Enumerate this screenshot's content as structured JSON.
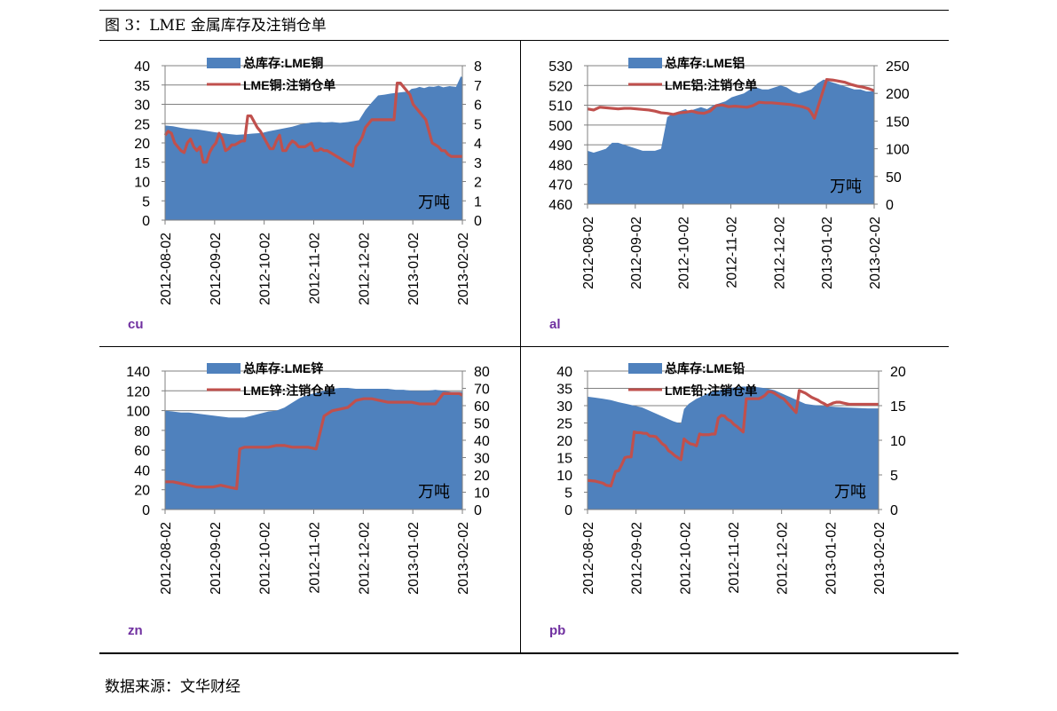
{
  "figure": {
    "title": "图 3：LME 金属库存及注销仓单",
    "source": "数据来源：文华财经"
  },
  "colors": {
    "area": "#4f81bd",
    "line": "#c0504d",
    "label": "#7030a0",
    "grid": "#808080"
  },
  "chart_data": [
    {
      "type": "area+line",
      "metal_label": "cu",
      "unit_label": "万吨",
      "x_tick_labels": [
        "2012-08-02",
        "2012-09-02",
        "2012-10-02",
        "2012-11-02",
        "2012-12-02",
        "2013-01-02",
        "2013-02-02"
      ],
      "left_axis": {
        "ylim": [
          0,
          40
        ],
        "ticks": [
          0,
          5,
          10,
          15,
          20,
          25,
          30,
          35,
          40
        ]
      },
      "right_axis": {
        "ylim": [
          0,
          8
        ],
        "ticks": [
          0,
          1,
          2,
          3,
          4,
          5,
          6,
          7,
          8
        ]
      },
      "series": [
        {
          "name": "总库存:LME铜",
          "kind": "area",
          "axis": "left",
          "x": [
            0,
            5,
            10,
            15,
            20,
            25,
            31,
            36,
            40,
            45,
            50,
            55,
            61,
            65,
            70,
            75,
            80,
            85,
            92,
            97,
            100,
            105,
            110,
            115,
            122,
            126,
            130,
            134,
            138,
            142,
            146,
            150,
            153,
            155,
            158,
            160,
            163,
            166,
            169,
            172,
            175,
            179,
            183,
            186,
            187
          ],
          "values": [
            24.5,
            24.3,
            23.9,
            23.6,
            23.5,
            23.2,
            22.8,
            22.5,
            22.3,
            22.1,
            22.2,
            22.4,
            22.6,
            23.0,
            23.4,
            23.8,
            24.2,
            24.8,
            25.3,
            25.4,
            25.3,
            25.4,
            25.2,
            25.4,
            25.9,
            28.5,
            30.5,
            32.3,
            32.5,
            32.8,
            33.0,
            33.2,
            33.3,
            34.0,
            34.2,
            34.5,
            34.2,
            34.6,
            34.5,
            34.8,
            34.4,
            34.7,
            34.5,
            37.2,
            37.0
          ]
        },
        {
          "name": "LME铜:注销仓单",
          "kind": "line",
          "axis": "right",
          "x": [
            0,
            2,
            4,
            6,
            8,
            10,
            12,
            14,
            16,
            18,
            20,
            22,
            24,
            26,
            28,
            30,
            32,
            34,
            36,
            38,
            40,
            42,
            44,
            46,
            48,
            50,
            52,
            54,
            56,
            58,
            60,
            62,
            64,
            66,
            68,
            70,
            72,
            74,
            76,
            78,
            80,
            82,
            84,
            86,
            88,
            90,
            92,
            94,
            96,
            98,
            100,
            102,
            104,
            106,
            108,
            110,
            112,
            114,
            116,
            118,
            120,
            122,
            124,
            126,
            128,
            130,
            132,
            134,
            136,
            138,
            140,
            142,
            144,
            146,
            148,
            150,
            152,
            154,
            156,
            158,
            160,
            162,
            164,
            166,
            168,
            170,
            172,
            174,
            176,
            178,
            180,
            182,
            184,
            186,
            187
          ],
          "values": [
            4.4,
            4.6,
            4.5,
            4.0,
            3.8,
            3.6,
            3.5,
            4.0,
            4.2,
            3.8,
            3.6,
            3.8,
            3.0,
            3.0,
            3.5,
            3.8,
            4.0,
            4.5,
            4.2,
            3.6,
            3.7,
            3.9,
            3.9,
            4.0,
            4.1,
            4.1,
            5.4,
            5.4,
            5.1,
            4.8,
            4.6,
            4.3,
            4.0,
            3.7,
            3.7,
            4.1,
            4.4,
            3.6,
            3.6,
            3.9,
            4.1,
            4.0,
            3.8,
            3.8,
            3.8,
            3.9,
            4.0,
            3.6,
            3.6,
            3.7,
            3.6,
            3.6,
            3.5,
            3.4,
            3.3,
            3.2,
            3.1,
            3.0,
            2.9,
            2.8,
            3.8,
            4.0,
            4.3,
            4.8,
            5.0,
            5.2,
            5.2,
            5.2,
            5.2,
            5.2,
            5.2,
            5.2,
            5.2,
            7.1,
            7.1,
            6.9,
            6.7,
            6.5,
            6.0,
            5.8,
            5.6,
            5.4,
            5.2,
            4.6,
            4.0,
            3.9,
            3.8,
            3.6,
            3.6,
            3.4,
            3.3,
            3.3,
            3.3,
            3.3,
            3.3
          ]
        }
      ]
    },
    {
      "type": "area+line",
      "metal_label": "al",
      "unit_label": "万吨",
      "x_tick_labels": [
        "2012-08-02",
        "2012-09-02",
        "2012-10-02",
        "2012-11-02",
        "2012-12-02",
        "2013-01-02",
        "2013-02-02"
      ],
      "left_axis": {
        "ylim": [
          460,
          530
        ],
        "ticks": [
          460,
          470,
          480,
          490,
          500,
          510,
          520,
          530
        ]
      },
      "right_axis": {
        "ylim": [
          0,
          250
        ],
        "ticks": [
          0,
          50,
          100,
          150,
          200,
          250
        ]
      },
      "series": [
        {
          "name": "总库存:LME铝",
          "kind": "area",
          "axis": "left",
          "x": [
            0,
            4,
            8,
            12,
            16,
            20,
            24,
            28,
            32,
            36,
            40,
            44,
            48,
            52,
            56,
            60,
            64,
            66,
            70,
            74,
            78,
            82,
            86,
            90,
            94,
            98,
            102,
            106,
            110,
            114,
            118,
            122,
            126,
            130,
            134,
            138,
            142,
            146,
            150,
            154,
            158,
            162,
            166,
            170,
            174,
            178,
            182,
            186,
            187
          ],
          "values": [
            487,
            486,
            487,
            488,
            491,
            491,
            490,
            489,
            488,
            487,
            487,
            487,
            488,
            504,
            506,
            507,
            508,
            507,
            508,
            509,
            508,
            510,
            511,
            512,
            514,
            515,
            516,
            518,
            519,
            518,
            518,
            519,
            520,
            519,
            517,
            516,
            517,
            518,
            521,
            523,
            522,
            521,
            520,
            519,
            518,
            518,
            517,
            517,
            517
          ]
        },
        {
          "name": "LME铝:注销仓单",
          "kind": "line",
          "axis": "right",
          "x": [
            0,
            4,
            8,
            12,
            16,
            20,
            24,
            28,
            32,
            36,
            40,
            44,
            48,
            52,
            56,
            60,
            64,
            68,
            72,
            76,
            80,
            84,
            88,
            92,
            96,
            100,
            104,
            108,
            112,
            116,
            120,
            124,
            128,
            132,
            136,
            140,
            144,
            146,
            148,
            152,
            156,
            160,
            164,
            168,
            172,
            176,
            180,
            184,
            187
          ],
          "values": [
            172,
            170,
            175,
            174,
            173,
            172,
            173,
            173,
            172,
            171,
            170,
            168,
            165,
            164,
            162,
            165,
            166,
            168,
            165,
            164,
            168,
            178,
            179,
            176,
            177,
            176,
            175,
            178,
            184,
            183,
            183,
            182,
            181,
            180,
            178,
            176,
            172,
            165,
            155,
            190,
            225,
            224,
            222,
            220,
            216,
            213,
            211,
            208,
            205
          ]
        }
      ]
    },
    {
      "type": "area+line",
      "metal_label": "zn",
      "unit_label": "万吨",
      "x_tick_labels": [
        "2012-08-02",
        "2012-09-02",
        "2012-10-02",
        "2012-11-02",
        "2012-12-02",
        "2013-01-02",
        "2013-02-02"
      ],
      "left_axis": {
        "ylim": [
          0,
          140
        ],
        "ticks": [
          0,
          20,
          40,
          60,
          80,
          100,
          120,
          140
        ]
      },
      "right_axis": {
        "ylim": [
          0,
          80
        ],
        "ticks": [
          0,
          10,
          20,
          30,
          40,
          50,
          60,
          70,
          80
        ]
      },
      "series": [
        {
          "name": "总库存:LME锌",
          "kind": "area",
          "axis": "left",
          "x": [
            0,
            5,
            10,
            15,
            20,
            25,
            30,
            35,
            40,
            45,
            50,
            55,
            60,
            65,
            70,
            75,
            80,
            85,
            90,
            95,
            100,
            105,
            110,
            115,
            120,
            125,
            130,
            135,
            140,
            145,
            150,
            155,
            160,
            165,
            170,
            175,
            180,
            185,
            187
          ],
          "values": [
            100,
            99,
            98,
            98,
            97,
            96,
            95,
            94,
            93,
            93,
            93,
            95,
            97,
            99,
            100,
            103,
            108,
            113,
            116,
            118,
            120,
            122,
            123,
            123,
            122,
            122,
            122,
            122,
            122,
            121,
            121,
            120,
            120,
            120,
            121,
            120,
            119,
            119,
            119
          ]
        },
        {
          "name": "LME锌:注销仓单",
          "kind": "line",
          "axis": "right",
          "x": [
            0,
            5,
            10,
            15,
            20,
            25,
            30,
            35,
            40,
            45,
            47,
            50,
            55,
            60,
            65,
            70,
            75,
            80,
            85,
            90,
            95,
            100,
            105,
            110,
            115,
            120,
            125,
            130,
            135,
            140,
            145,
            150,
            155,
            160,
            165,
            170,
            175,
            180,
            185,
            187
          ],
          "values": [
            16,
            16,
            15,
            14,
            13,
            13,
            13,
            14,
            13,
            12,
            35,
            36,
            36,
            36,
            36,
            37,
            37,
            36,
            36,
            36,
            35,
            54,
            57,
            58,
            59,
            63,
            64,
            64,
            63,
            62,
            62,
            62,
            62,
            61,
            61,
            61,
            67,
            67,
            67,
            66
          ]
        }
      ]
    },
    {
      "type": "area+line",
      "metal_label": "pb",
      "unit_label": "万吨",
      "x_tick_labels": [
        "2012-08-02",
        "2012-09-02",
        "2012-10-02",
        "2012-11-02",
        "2012-12-02",
        "2013-01-02",
        "2013-02-02"
      ],
      "left_axis": {
        "ylim": [
          0,
          40
        ],
        "ticks": [
          0,
          5,
          10,
          15,
          20,
          25,
          30,
          35,
          40
        ]
      },
      "right_axis": {
        "ylim": [
          0,
          20
        ],
        "ticks": [
          0,
          5,
          10,
          15,
          20
        ]
      },
      "series": [
        {
          "name": "总库存:LME铅",
          "kind": "area",
          "axis": "left",
          "x": [
            0,
            5,
            10,
            15,
            20,
            25,
            30,
            35,
            40,
            45,
            50,
            55,
            60,
            62,
            65,
            70,
            75,
            80,
            85,
            90,
            95,
            100,
            105,
            110,
            115,
            120,
            125,
            130,
            135,
            140,
            145,
            150,
            155,
            160,
            165,
            170,
            175,
            180,
            185,
            187
          ],
          "values": [
            32.6,
            32.3,
            32.0,
            31.6,
            31.0,
            30.5,
            30.0,
            29.5,
            28.5,
            27.5,
            26.5,
            25.5,
            24.8,
            29,
            30.5,
            32,
            33,
            34,
            34.5,
            35,
            35.3,
            35.5,
            35.5,
            35.3,
            35,
            34.5,
            33.5,
            32.5,
            31.5,
            30.5,
            30.2,
            30,
            29.8,
            29.6,
            29.5,
            29.4,
            29.3,
            29.2,
            29.2,
            29.2
          ]
        },
        {
          "name": "LME铅:注销仓单",
          "kind": "line",
          "axis": "right",
          "x": [
            0,
            5,
            10,
            12,
            15,
            18,
            20,
            22,
            24,
            26,
            28,
            30,
            32,
            34,
            36,
            38,
            40,
            42,
            44,
            46,
            48,
            50,
            52,
            54,
            56,
            58,
            60,
            62,
            64,
            66,
            68,
            70,
            72,
            74,
            76,
            78,
            80,
            82,
            84,
            86,
            88,
            90,
            92,
            94,
            96,
            98,
            100,
            102,
            104,
            106,
            108,
            110,
            112,
            114,
            116,
            118,
            120,
            122,
            124,
            126,
            128,
            130,
            132,
            134,
            136,
            138,
            140,
            142,
            144,
            146,
            148,
            150,
            152,
            154,
            156,
            158,
            160,
            162,
            164,
            166,
            168,
            170,
            172,
            174,
            176,
            178,
            180,
            182,
            184,
            186,
            187
          ],
          "values": [
            4.2,
            4.1,
            3.8,
            3.5,
            3.4,
            5.5,
            5.6,
            6.5,
            7.5,
            7.6,
            7.6,
            11.2,
            11.1,
            11.1,
            11.0,
            11.0,
            10.6,
            10.6,
            10.5,
            10.0,
            9.5,
            9.2,
            8.5,
            8.2,
            7.8,
            7.5,
            7.2,
            10.2,
            9.8,
            9.5,
            9.4,
            9.2,
            10.9,
            10.8,
            10.8,
            10.8,
            10.9,
            10.9,
            13.2,
            13.6,
            13.5,
            13.0,
            12.8,
            12.3,
            12.0,
            11.6,
            11.2,
            16.0,
            16.0,
            16.0,
            16.0,
            16.0,
            16.2,
            16.5,
            17.0,
            17.0,
            16.8,
            16.5,
            16.2,
            16.0,
            15.5,
            15.0,
            14.5,
            14.0,
            17.2,
            17.0,
            16.8,
            16.5,
            16.2,
            16.0,
            15.8,
            15.5,
            15.3,
            15.0,
            15.2,
            15.4,
            15.5,
            15.5,
            15.4,
            15.3,
            15.2,
            15.2,
            15.2,
            15.2,
            15.2,
            15.2,
            15.2,
            15.2,
            15.2,
            15.2,
            15.2
          ]
        }
      ]
    }
  ]
}
